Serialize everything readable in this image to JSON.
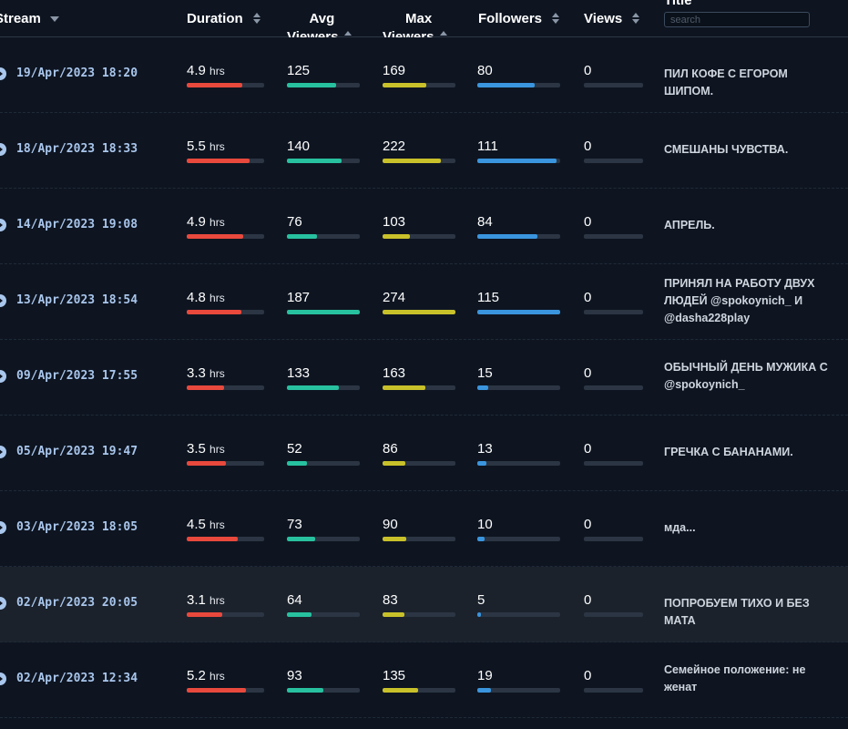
{
  "header": {
    "stream": "Stream",
    "duration": "Duration",
    "avg_viewers": "Avg\nViewers",
    "max_viewers": "Max\nViewers",
    "followers": "Followers",
    "views": "Views",
    "title": "Title",
    "search_placeholder": "search"
  },
  "colors": {
    "duration": "#e8493c",
    "avg_viewers": "#27c19f",
    "max_viewers": "#c9c12a",
    "followers": "#3a95de"
  },
  "rows": [
    {
      "date": "19/Apr/2023 18:20",
      "duration": "4.9",
      "duration_unit": "hrs",
      "avg": "125",
      "max": "169",
      "followers": "80",
      "views": "0",
      "title": "ПИЛ КОФЕ С ЕГОРОМ ШИПОМ.",
      "bars": {
        "duration": 0.72,
        "avg": 0.67,
        "max": 0.6,
        "followers": 0.69,
        "views": 0
      }
    },
    {
      "date": "18/Apr/2023 18:33",
      "duration": "5.5",
      "duration_unit": "hrs",
      "avg": "140",
      "max": "222",
      "followers": "111",
      "views": "0",
      "title": "СМЕШАНЫ ЧУВСТВА.",
      "bars": {
        "duration": 0.81,
        "avg": 0.75,
        "max": 0.8,
        "followers": 0.96,
        "views": 0
      }
    },
    {
      "date": "14/Apr/2023 19:08",
      "duration": "4.9",
      "duration_unit": "hrs",
      "avg": "76",
      "max": "103",
      "followers": "84",
      "views": "0",
      "title": "АПРЕЛЬ.",
      "bars": {
        "duration": 0.73,
        "avg": 0.41,
        "max": 0.37,
        "followers": 0.73,
        "views": 0
      }
    },
    {
      "date": "13/Apr/2023 18:54",
      "duration": "4.8",
      "duration_unit": "hrs",
      "avg": "187",
      "max": "274",
      "followers": "115",
      "views": "0",
      "title": "ПРИНЯЛ НА РАБОТУ ДВУХ ЛЮДЕЙ @spokoynich_ И @dasha228play",
      "bars": {
        "duration": 0.71,
        "avg": 1.0,
        "max": 1.0,
        "followers": 1.0,
        "views": 0
      }
    },
    {
      "date": "09/Apr/2023 17:55",
      "duration": "3.3",
      "duration_unit": "hrs",
      "avg": "133",
      "max": "163",
      "followers": "15",
      "views": "0",
      "title": "ОБЫЧНЫЙ ДЕНЬ МУЖИКА С @spokoynich_",
      "bars": {
        "duration": 0.48,
        "avg": 0.71,
        "max": 0.59,
        "followers": 0.13,
        "views": 0
      }
    },
    {
      "date": "05/Apr/2023 19:47",
      "duration": "3.5",
      "duration_unit": "hrs",
      "avg": "52",
      "max": "86",
      "followers": "13",
      "views": "0",
      "title": "ГРЕЧКА С БАНАНАМИ.",
      "bars": {
        "duration": 0.51,
        "avg": 0.28,
        "max": 0.31,
        "followers": 0.11,
        "views": 0
      }
    },
    {
      "date": "03/Apr/2023 18:05",
      "duration": "4.5",
      "duration_unit": "hrs",
      "avg": "73",
      "max": "90",
      "followers": "10",
      "views": "0",
      "title": "мда...",
      "bars": {
        "duration": 0.66,
        "avg": 0.39,
        "max": 0.32,
        "followers": 0.09,
        "views": 0
      }
    },
    {
      "date": "02/Apr/2023 20:05",
      "duration": "3.1",
      "duration_unit": "hrs",
      "avg": "64",
      "max": "83",
      "followers": "5",
      "views": "0",
      "title": "ПОПРОБУЕМ ТИХО И БЕЗ МАТА",
      "bars": {
        "duration": 0.46,
        "avg": 0.34,
        "max": 0.3,
        "followers": 0.04,
        "views": 0
      },
      "highlight": true
    },
    {
      "date": "02/Apr/2023 12:34",
      "duration": "5.2",
      "duration_unit": "hrs",
      "avg": "93",
      "max": "135",
      "followers": "19",
      "views": "0",
      "title": "Семейное положение: не женат",
      "bars": {
        "duration": 0.76,
        "avg": 0.5,
        "max": 0.49,
        "followers": 0.16,
        "views": 0
      }
    }
  ]
}
